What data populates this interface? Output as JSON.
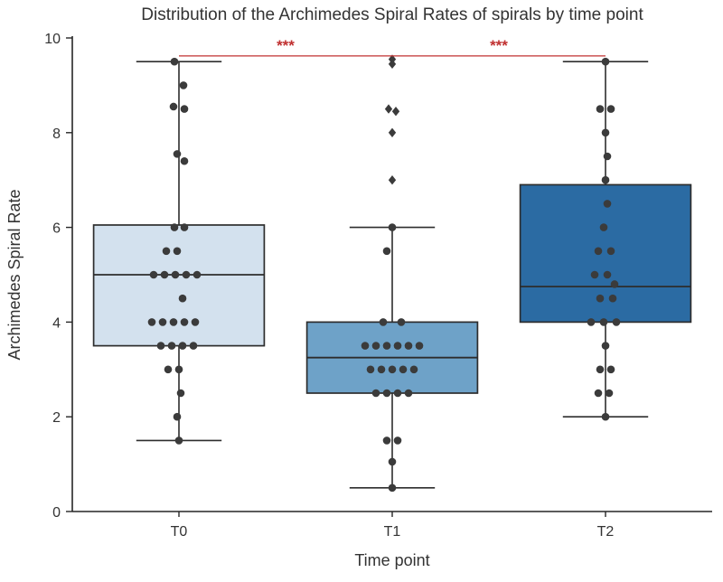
{
  "chart_data": {
    "type": "box",
    "title": "Distribution of the Archimedes Spiral Rates of spirals by time point",
    "xlabel": "Time point",
    "ylabel": "Archimedes Spiral Rate",
    "ylim": [
      0,
      10
    ],
    "yticks": [
      0,
      2,
      4,
      6,
      8,
      10
    ],
    "categories": [
      "T0",
      "T1",
      "T2"
    ],
    "palette": [
      "#d3e1ee",
      "#6ea2c8",
      "#2b6ba3"
    ],
    "box_edge_color": "#2d2d2d",
    "axis_color": "#262626",
    "text_color": "#333333",
    "point_color": "#3b3b3b",
    "significance_color": "#c03030",
    "grid": false,
    "legend": "none",
    "boxes": [
      {
        "category": "T0",
        "whisker_low": 1.5,
        "q1": 3.5,
        "median": 5.0,
        "q3": 6.05,
        "whisker_high": 9.5,
        "outliers": []
      },
      {
        "category": "T1",
        "whisker_low": 0.5,
        "q1": 2.5,
        "median": 3.25,
        "q3": 4.0,
        "whisker_high": 6.0,
        "outliers": [
          [
            0,
            9.55
          ],
          [
            0,
            9.45
          ],
          [
            -4,
            8.5
          ],
          [
            4,
            8.45
          ],
          [
            0,
            8.0
          ],
          [
            0,
            7.0
          ]
        ]
      },
      {
        "category": "T2",
        "whisker_low": 2.0,
        "q1": 4.0,
        "median": 4.75,
        "q3": 6.9,
        "whisker_high": 9.5,
        "outliers": []
      }
    ],
    "swarm_points": [
      [
        [
          -5,
          9.5
        ],
        [
          5,
          9.0
        ],
        [
          -6,
          8.55
        ],
        [
          6,
          8.5
        ],
        [
          -2,
          7.55
        ],
        [
          6,
          7.4
        ],
        [
          -5,
          6.0
        ],
        [
          6,
          6.0
        ],
        [
          -14,
          5.5
        ],
        [
          -2,
          5.5
        ],
        [
          -28,
          5.0
        ],
        [
          -16,
          5.0
        ],
        [
          -4,
          5.0
        ],
        [
          8,
          5.0
        ],
        [
          20,
          5.0
        ],
        [
          4,
          4.5
        ],
        [
          -30,
          4.0
        ],
        [
          -18,
          4.0
        ],
        [
          -6,
          4.0
        ],
        [
          6,
          4.0
        ],
        [
          18,
          4.0
        ],
        [
          -20,
          3.5
        ],
        [
          -8,
          3.5
        ],
        [
          4,
          3.5
        ],
        [
          16,
          3.5
        ],
        [
          -12,
          3.0
        ],
        [
          0,
          3.0
        ],
        [
          2,
          2.5
        ],
        [
          -2,
          2.0
        ],
        [
          0,
          1.5
        ]
      ],
      [
        [
          0,
          6.0
        ],
        [
          -6,
          5.5
        ],
        [
          -10,
          4.0
        ],
        [
          10,
          4.0
        ],
        [
          -30,
          3.5
        ],
        [
          -18,
          3.5
        ],
        [
          -6,
          3.5
        ],
        [
          6,
          3.5
        ],
        [
          18,
          3.5
        ],
        [
          30,
          3.5
        ],
        [
          -24,
          3.0
        ],
        [
          -12,
          3.0
        ],
        [
          0,
          3.0
        ],
        [
          12,
          3.0
        ],
        [
          24,
          3.0
        ],
        [
          -18,
          2.5
        ],
        [
          -6,
          2.5
        ],
        [
          6,
          2.5
        ],
        [
          18,
          2.5
        ],
        [
          -6,
          1.5
        ],
        [
          6,
          1.5
        ],
        [
          0,
          1.05
        ],
        [
          0,
          0.5
        ]
      ],
      [
        [
          0,
          9.5
        ],
        [
          -6,
          8.5
        ],
        [
          6,
          8.5
        ],
        [
          0,
          8.0
        ],
        [
          2,
          7.5
        ],
        [
          0,
          7.0
        ],
        [
          2,
          6.5
        ],
        [
          -2,
          6.0
        ],
        [
          -8,
          5.5
        ],
        [
          6,
          5.5
        ],
        [
          -12,
          5.0
        ],
        [
          2,
          5.0
        ],
        [
          10,
          4.8
        ],
        [
          -6,
          4.5
        ],
        [
          8,
          4.5
        ],
        [
          -16,
          4.0
        ],
        [
          -2,
          4.0
        ],
        [
          12,
          4.0
        ],
        [
          0,
          3.5
        ],
        [
          -6,
          3.0
        ],
        [
          6,
          3.0
        ],
        [
          -8,
          2.5
        ],
        [
          4,
          2.5
        ],
        [
          0,
          2.0
        ]
      ]
    ],
    "significance": [
      {
        "from": 0,
        "to": 1,
        "label": "***",
        "y": 9.62
      },
      {
        "from": 1,
        "to": 2,
        "label": "***",
        "y": 9.62
      }
    ]
  }
}
